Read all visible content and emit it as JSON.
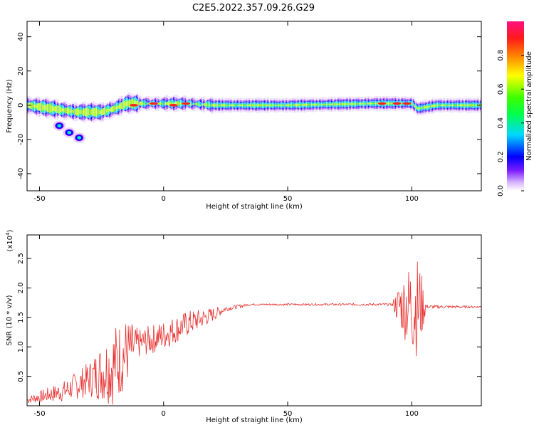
{
  "title": "C2E5.2022.357.09.26.G29",
  "chart_data": [
    {
      "type": "heatmap",
      "xlabel": "Height of straight line (km)",
      "ylabel": "Frequency (Hz)",
      "xlim": [
        -55,
        128
      ],
      "ylim": [
        -50,
        49
      ],
      "xticks": [
        -50,
        0,
        50,
        100
      ],
      "yticks": [
        -40,
        -20,
        0,
        20,
        40
      ],
      "colorbar": {
        "label": "Normalized spectral amplitude",
        "range": [
          0,
          1
        ],
        "ticks": [
          "0.0",
          "0.2",
          "0.4",
          "0.6",
          "0.8"
        ]
      },
      "ridge": [
        {
          "x": -55,
          "y": 0
        },
        {
          "x": -45,
          "y": -2
        },
        {
          "x": -35,
          "y": -4
        },
        {
          "x": -25,
          "y": -4
        },
        {
          "x": -20,
          "y": -2
        },
        {
          "x": -15,
          "y": 1
        },
        {
          "x": -5,
          "y": 1
        },
        {
          "x": 10,
          "y": 1
        },
        {
          "x": 20,
          "y": 0
        },
        {
          "x": 50,
          "y": 0
        },
        {
          "x": 85,
          "y": 1
        },
        {
          "x": 100,
          "y": 1
        },
        {
          "x": 102,
          "y": -2
        },
        {
          "x": 110,
          "y": 0
        },
        {
          "x": 128,
          "y": 0
        }
      ],
      "side_branch": [
        {
          "x": -42,
          "y": -12
        },
        {
          "x": -38,
          "y": -16
        },
        {
          "x": -34,
          "y": -19
        }
      ],
      "peaks_red": [
        {
          "x": -12,
          "y": 0
        },
        {
          "x": -4,
          "y": 1
        },
        {
          "x": 4,
          "y": 0
        },
        {
          "x": 9,
          "y": 1
        },
        {
          "x": 88,
          "y": 1
        },
        {
          "x": 94,
          "y": 1
        },
        {
          "x": 98,
          "y": 1
        }
      ]
    },
    {
      "type": "line",
      "xlabel": "Height of straight line (km)",
      "ylabel": "SNR (10 * v/v)",
      "y_multiplier": "(x10",
      "y_multiplier_exp": "4",
      "xlim": [
        -55,
        128
      ],
      "ylim": [
        0,
        29000
      ],
      "xticks": [
        -50,
        0,
        50,
        100
      ],
      "yticks": [
        0.5,
        1.0,
        1.5,
        2.0,
        2.5
      ],
      "color": "#e83030",
      "envelope": [
        {
          "x": -55,
          "mean": 1000,
          "amp": 600
        },
        {
          "x": -40,
          "mean": 2500,
          "amp": 1800
        },
        {
          "x": -30,
          "mean": 4500,
          "amp": 3000
        },
        {
          "x": -20,
          "mean": 7000,
          "amp": 7000
        },
        {
          "x": -15,
          "mean": 9000,
          "amp": 6000
        },
        {
          "x": -10,
          "mean": 10500,
          "amp": 2500
        },
        {
          "x": 0,
          "mean": 12000,
          "amp": 2500
        },
        {
          "x": 10,
          "mean": 14000,
          "amp": 2200
        },
        {
          "x": 20,
          "mean": 15500,
          "amp": 1200
        },
        {
          "x": 25,
          "mean": 16500,
          "amp": 500
        },
        {
          "x": 35,
          "mean": 17200,
          "amp": 150
        },
        {
          "x": 92,
          "mean": 17200,
          "amp": 200
        },
        {
          "x": 95,
          "mean": 17000,
          "amp": 4000
        },
        {
          "x": 101,
          "mean": 17000,
          "amp": 9000
        },
        {
          "x": 103,
          "mean": 17000,
          "amp": 8000
        },
        {
          "x": 106,
          "mean": 16800,
          "amp": 300
        },
        {
          "x": 128,
          "mean": 16800,
          "amp": 150
        }
      ]
    }
  ]
}
